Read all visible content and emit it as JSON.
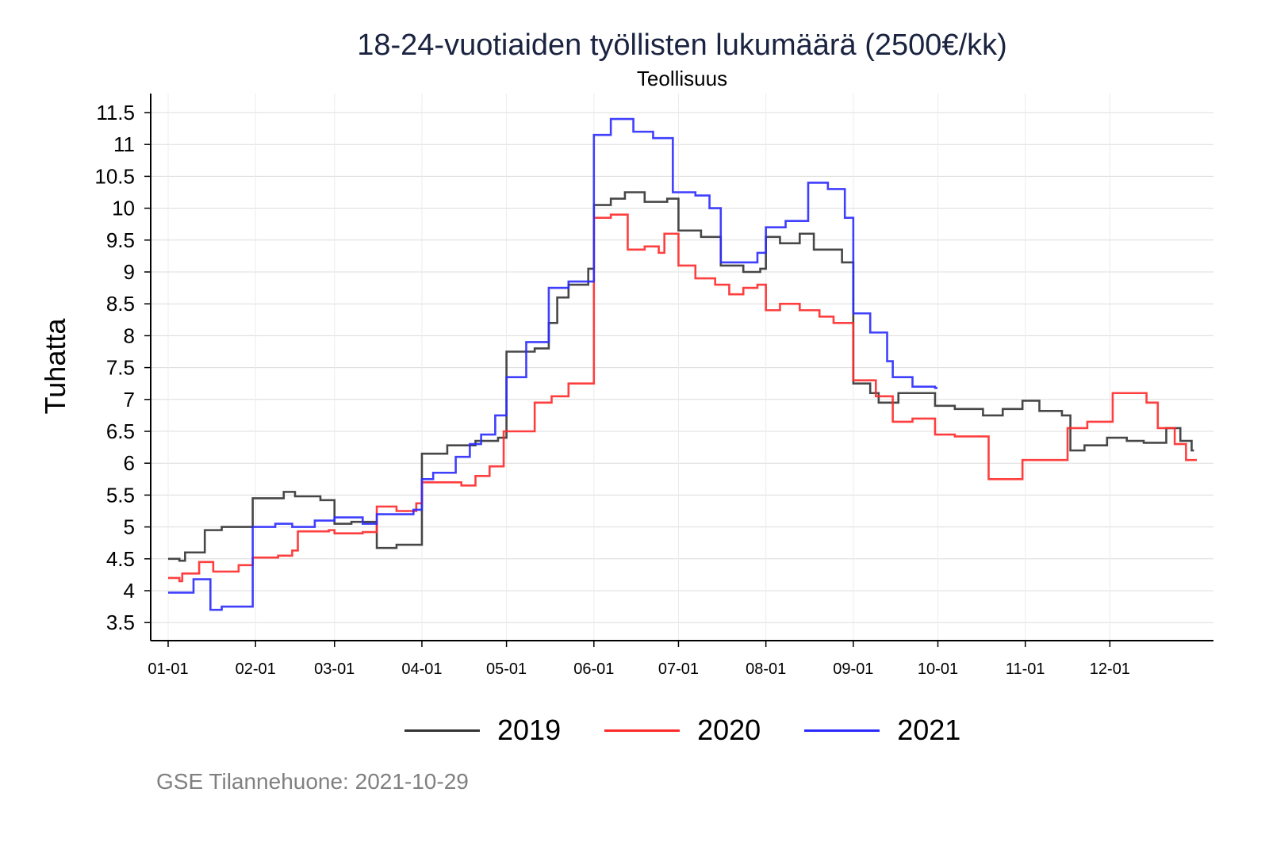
{
  "chart_data": {
    "type": "line",
    "title": "18-24-vuotiaiden työllisten lukumäärä (2500€/kk)",
    "subtitle": "Teollisuus",
    "xlabel": "",
    "ylabel": "Tuhatta",
    "x_unit": "day of year",
    "ylim": [
      3.3,
      11.8
    ],
    "xlim": [
      -5,
      375
    ],
    "y_ticks": [
      "3.5",
      "4",
      "4.5",
      "5",
      "5.5",
      "6",
      "6.5",
      "7",
      "7.5",
      "8",
      "8.5",
      "9",
      "9.5",
      "10",
      "10.5",
      "11",
      "11.5"
    ],
    "x_ticks": [
      {
        "label": "01-01",
        "day": 1
      },
      {
        "label": "02-01",
        "day": 32
      },
      {
        "label": "03-01",
        "day": 60
      },
      {
        "label": "04-01",
        "day": 91
      },
      {
        "label": "05-01",
        "day": 121
      },
      {
        "label": "06-01",
        "day": 152
      },
      {
        "label": "07-01",
        "day": 182
      },
      {
        "label": "08-01",
        "day": 213
      },
      {
        "label": "09-01",
        "day": 244
      },
      {
        "label": "10-01",
        "day": 274
      },
      {
        "label": "11-01",
        "day": 305
      },
      {
        "label": "12-01",
        "day": 335
      }
    ],
    "grid": true,
    "legend_position": "bottom",
    "line_style": "step",
    "series": [
      {
        "name": "2019",
        "color": "#333333",
        "points": [
          [
            1,
            4.5
          ],
          [
            5,
            4.47
          ],
          [
            7,
            4.6
          ],
          [
            14,
            4.95
          ],
          [
            20,
            5.0
          ],
          [
            31,
            5.45
          ],
          [
            42,
            5.55
          ],
          [
            46,
            5.48
          ],
          [
            55,
            5.42
          ],
          [
            60,
            5.05
          ],
          [
            66,
            5.08
          ],
          [
            75,
            4.67
          ],
          [
            82,
            4.72
          ],
          [
            91,
            6.15
          ],
          [
            100,
            6.28
          ],
          [
            110,
            6.35
          ],
          [
            118,
            6.4
          ],
          [
            121,
            7.75
          ],
          [
            131,
            7.8
          ],
          [
            136,
            8.2
          ],
          [
            139,
            8.6
          ],
          [
            143,
            8.8
          ],
          [
            150,
            9.05
          ],
          [
            152,
            10.05
          ],
          [
            158,
            10.15
          ],
          [
            163,
            10.25
          ],
          [
            170,
            10.1
          ],
          [
            178,
            10.15
          ],
          [
            182,
            9.65
          ],
          [
            190,
            9.55
          ],
          [
            197,
            9.1
          ],
          [
            205,
            9.0
          ],
          [
            211,
            9.05
          ],
          [
            213,
            9.55
          ],
          [
            218,
            9.45
          ],
          [
            225,
            9.6
          ],
          [
            230,
            9.35
          ],
          [
            240,
            9.15
          ],
          [
            244,
            7.25
          ],
          [
            250,
            7.1
          ],
          [
            253,
            6.95
          ],
          [
            260,
            7.1
          ],
          [
            273,
            6.9
          ],
          [
            280,
            6.85
          ],
          [
            290,
            6.75
          ],
          [
            297,
            6.85
          ],
          [
            304,
            6.98
          ],
          [
            310,
            6.82
          ],
          [
            318,
            6.75
          ],
          [
            321,
            6.2
          ],
          [
            326,
            6.28
          ],
          [
            334,
            6.4
          ],
          [
            341,
            6.35
          ],
          [
            347,
            6.32
          ],
          [
            355,
            6.55
          ],
          [
            360,
            6.35
          ],
          [
            364,
            6.2
          ]
        ]
      },
      {
        "name": "2020",
        "color": "#ff2a2a",
        "points": [
          [
            1,
            4.2
          ],
          [
            5,
            4.15
          ],
          [
            6,
            4.27
          ],
          [
            12,
            4.45
          ],
          [
            17,
            4.3
          ],
          [
            26,
            4.4
          ],
          [
            31,
            4.52
          ],
          [
            40,
            4.55
          ],
          [
            45,
            4.63
          ],
          [
            47,
            4.93
          ],
          [
            58,
            4.95
          ],
          [
            60,
            4.9
          ],
          [
            70,
            4.92
          ],
          [
            75,
            5.32
          ],
          [
            82,
            5.25
          ],
          [
            89,
            5.37
          ],
          [
            91,
            5.7
          ],
          [
            105,
            5.65
          ],
          [
            110,
            5.8
          ],
          [
            115,
            5.95
          ],
          [
            120,
            6.5
          ],
          [
            131,
            6.95
          ],
          [
            137,
            7.05
          ],
          [
            143,
            7.25
          ],
          [
            152,
            9.85
          ],
          [
            158,
            9.9
          ],
          [
            164,
            9.35
          ],
          [
            170,
            9.4
          ],
          [
            175,
            9.3
          ],
          [
            177,
            9.6
          ],
          [
            182,
            9.1
          ],
          [
            188,
            8.9
          ],
          [
            195,
            8.8
          ],
          [
            200,
            8.65
          ],
          [
            205,
            8.75
          ],
          [
            210,
            8.8
          ],
          [
            213,
            8.4
          ],
          [
            218,
            8.5
          ],
          [
            225,
            8.4
          ],
          [
            232,
            8.3
          ],
          [
            237,
            8.2
          ],
          [
            244,
            7.3
          ],
          [
            252,
            7.05
          ],
          [
            258,
            6.65
          ],
          [
            265,
            6.7
          ],
          [
            273,
            6.45
          ],
          [
            280,
            6.42
          ],
          [
            292,
            5.75
          ],
          [
            304,
            6.05
          ],
          [
            320,
            6.55
          ],
          [
            327,
            6.65
          ],
          [
            336,
            7.1
          ],
          [
            348,
            6.95
          ],
          [
            352,
            6.55
          ],
          [
            358,
            6.3
          ],
          [
            362,
            6.05
          ],
          [
            365,
            6.05
          ]
        ]
      },
      {
        "name": "2021",
        "color": "#2a2aff",
        "points": [
          [
            1,
            3.97
          ],
          [
            10,
            4.18
          ],
          [
            16,
            3.7
          ],
          [
            20,
            3.75
          ],
          [
            31,
            5.0
          ],
          [
            39,
            5.05
          ],
          [
            45,
            5.0
          ],
          [
            53,
            5.1
          ],
          [
            60,
            5.15
          ],
          [
            70,
            5.05
          ],
          [
            75,
            5.2
          ],
          [
            88,
            5.27
          ],
          [
            91,
            5.75
          ],
          [
            95,
            5.85
          ],
          [
            103,
            6.1
          ],
          [
            108,
            6.3
          ],
          [
            112,
            6.45
          ],
          [
            117,
            6.75
          ],
          [
            121,
            7.35
          ],
          [
            128,
            7.9
          ],
          [
            136,
            8.75
          ],
          [
            143,
            8.85
          ],
          [
            152,
            11.15
          ],
          [
            158,
            11.4
          ],
          [
            166,
            11.2
          ],
          [
            173,
            11.1
          ],
          [
            180,
            10.25
          ],
          [
            188,
            10.2
          ],
          [
            193,
            10.0
          ],
          [
            197,
            9.15
          ],
          [
            205,
            9.15
          ],
          [
            210,
            9.3
          ],
          [
            213,
            9.7
          ],
          [
            220,
            9.8
          ],
          [
            228,
            10.4
          ],
          [
            235,
            10.3
          ],
          [
            241,
            9.85
          ],
          [
            244,
            8.35
          ],
          [
            250,
            8.05
          ],
          [
            256,
            7.6
          ],
          [
            258,
            7.35
          ],
          [
            265,
            7.2
          ],
          [
            273,
            7.18
          ]
        ]
      }
    ]
  },
  "caption": "GSE Tilannehuone: 2021-10-29"
}
